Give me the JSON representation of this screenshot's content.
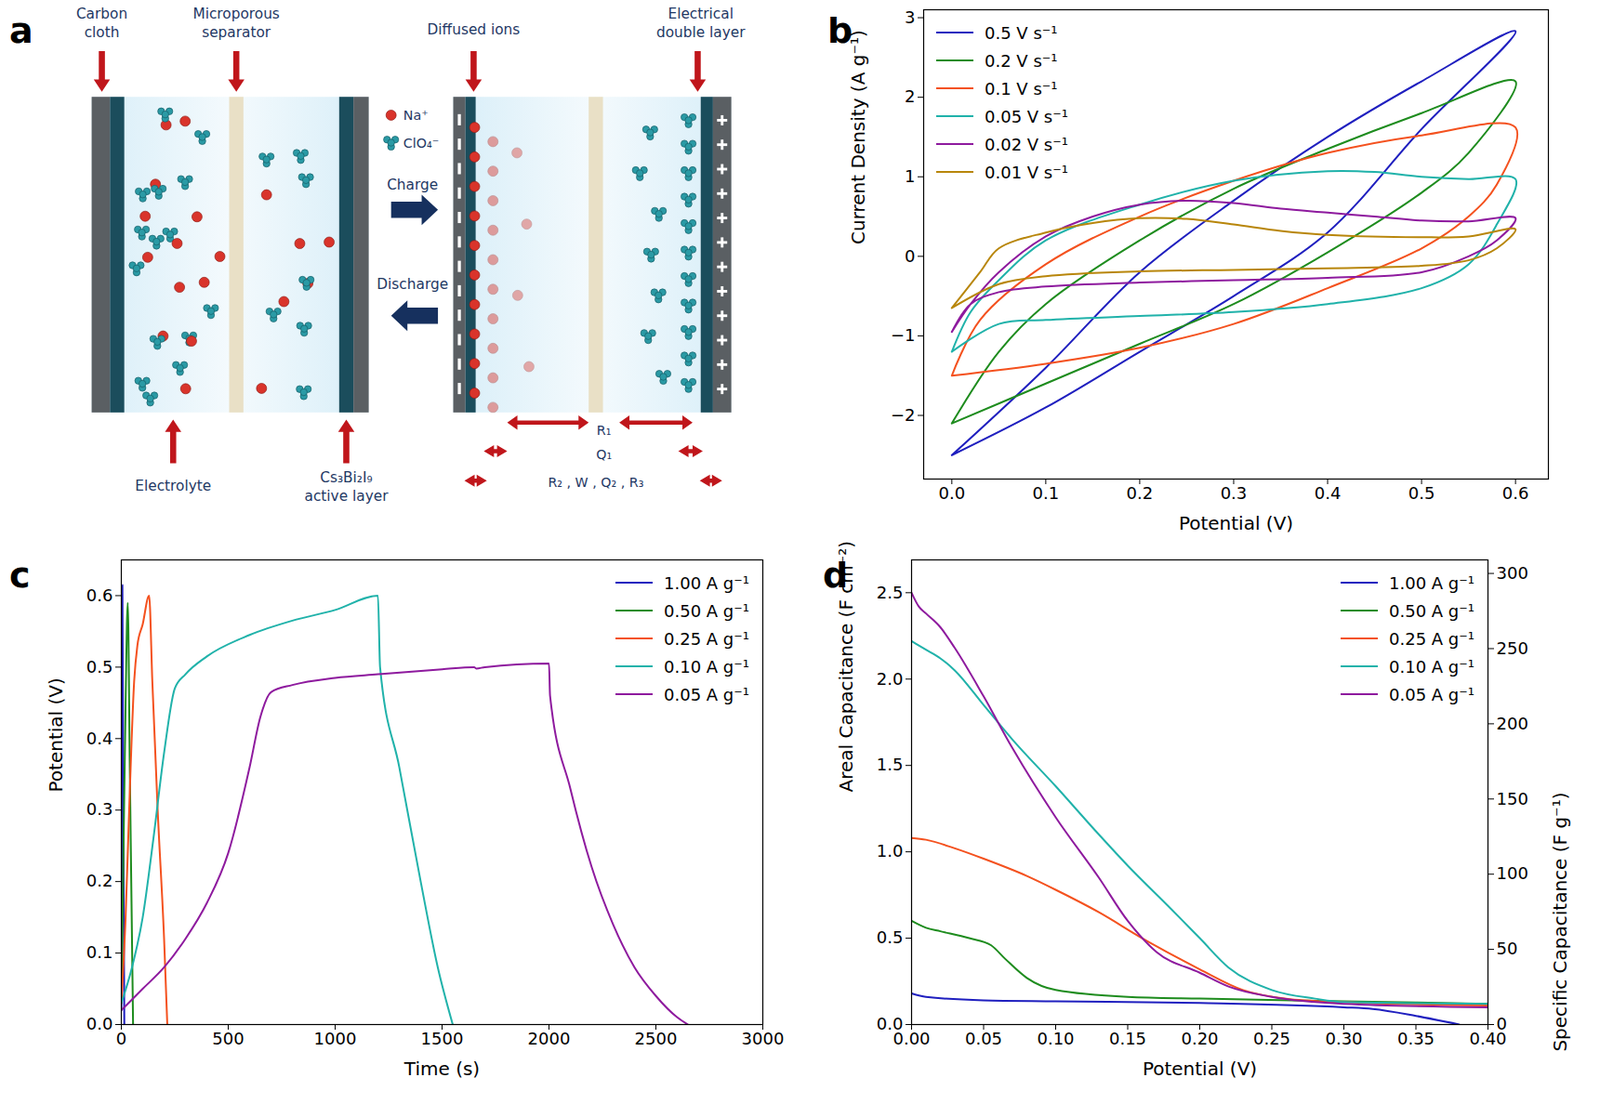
{
  "diagram": {
    "panel": "a",
    "top_labels": [
      "Carbon cloth",
      "Microporous separator",
      "Diffused ions",
      "Electrical double layer"
    ],
    "bottom_labels": [
      "Electrolyte",
      "Cs₃Bi₂I₉ active layer"
    ],
    "ion_legend": [
      "Na⁺",
      "ClO₄⁻"
    ],
    "process_labels": [
      "Charge",
      "Discharge"
    ],
    "circuit_labels": [
      "R₁",
      "Q₁",
      "R₂ , W , Q₂ , R₃"
    ]
  },
  "chart_data": [
    {
      "panel": "b",
      "type": "line",
      "x_label": "Potential (V)",
      "y_label": "Current Density (A g⁻¹)",
      "xlim": [
        -0.03,
        0.635
      ],
      "ylim": [
        -2.8,
        3.1
      ],
      "xticks": [
        {
          "value": 0,
          "label": "0.0"
        },
        {
          "value": 0.1,
          "label": "0.1"
        },
        {
          "value": 0.2,
          "label": "0.2"
        },
        {
          "value": 0.3,
          "label": "0.3"
        },
        {
          "value": 0.4,
          "label": "0.4"
        },
        {
          "value": 0.5,
          "label": "0.5"
        },
        {
          "value": 0.6,
          "label": "0.6"
        }
      ],
      "yticks": [
        -2,
        -1,
        0,
        1,
        2,
        3
      ],
      "legend": "upper left",
      "series": [
        {
          "name": "0.5 V s⁻¹",
          "color": "#1f1fbf",
          "x": [
            0,
            0.1,
            0.2,
            0.3,
            0.4,
            0.5,
            0.6,
            0.5,
            0.4,
            0.3,
            0.2,
            0.1,
            0
          ],
          "values": [
            -2.5,
            -1.4,
            -0.2,
            0.7,
            1.5,
            2.2,
            2.83,
            1.6,
            0.3,
            -0.5,
            -1.2,
            -1.9,
            -2.5
          ]
        },
        {
          "name": "0.2 V s⁻¹",
          "color": "#1e8c1e",
          "x": [
            0,
            0.05,
            0.1,
            0.2,
            0.3,
            0.4,
            0.5,
            0.6,
            0.55,
            0.5,
            0.4,
            0.3,
            0.2,
            0.1,
            0
          ],
          "values": [
            -2.1,
            -1.2,
            -0.6,
            0.2,
            0.85,
            1.35,
            1.8,
            2.2,
            1.3,
            0.8,
            0.05,
            -0.6,
            -1.1,
            -1.6,
            -2.1
          ]
        },
        {
          "name": "0.1 V s⁻¹",
          "color": "#f4511e",
          "x": [
            0,
            0.03,
            0.1,
            0.2,
            0.3,
            0.4,
            0.5,
            0.6,
            0.58,
            0.55,
            0.5,
            0.4,
            0.3,
            0.2,
            0.1,
            0
          ],
          "values": [
            -1.5,
            -0.8,
            -0.1,
            0.5,
            0.95,
            1.3,
            1.52,
            1.62,
            0.9,
            0.5,
            0.1,
            -0.4,
            -0.85,
            -1.15,
            -1.35,
            -1.5
          ]
        },
        {
          "name": "0.05 V s⁻¹",
          "color": "#20b2aa",
          "x": [
            0,
            0.02,
            0.05,
            0.1,
            0.2,
            0.3,
            0.4,
            0.45,
            0.5,
            0.55,
            0.6,
            0.58,
            0.55,
            0.5,
            0.4,
            0.3,
            0.2,
            0.1,
            0.05,
            0
          ],
          "values": [
            -1.2,
            -0.7,
            -0.3,
            0.2,
            0.65,
            0.95,
            1.07,
            1.06,
            1.0,
            0.97,
            0.97,
            0.4,
            -0.1,
            -0.4,
            -0.6,
            -0.7,
            -0.75,
            -0.8,
            -0.85,
            -1.2
          ]
        },
        {
          "name": "0.02 V s⁻¹",
          "color": "#8e1a9e",
          "x": [
            0,
            0.02,
            0.05,
            0.1,
            0.15,
            0.2,
            0.25,
            0.3,
            0.35,
            0.4,
            0.45,
            0.5,
            0.55,
            0.6,
            0.58,
            0.55,
            0.5,
            0.4,
            0.3,
            0.2,
            0.1,
            0.05,
            0.02,
            0
          ],
          "values": [
            -0.95,
            -0.6,
            -0.2,
            0.25,
            0.5,
            0.65,
            0.7,
            0.67,
            0.6,
            0.55,
            0.5,
            0.45,
            0.44,
            0.48,
            0.2,
            0.0,
            -0.2,
            -0.27,
            -0.3,
            -0.33,
            -0.38,
            -0.45,
            -0.6,
            -0.95
          ]
        },
        {
          "name": "0.01 V s⁻¹",
          "color": "#b8860b",
          "x": [
            0,
            0.03,
            0.05,
            0.1,
            0.15,
            0.2,
            0.25,
            0.3,
            0.35,
            0.4,
            0.5,
            0.55,
            0.6,
            0.58,
            0.55,
            0.5,
            0.4,
            0.3,
            0.2,
            0.1,
            0.05,
            0
          ],
          "values": [
            -0.65,
            -0.2,
            0.1,
            0.3,
            0.42,
            0.48,
            0.47,
            0.4,
            0.32,
            0.27,
            0.24,
            0.25,
            0.34,
            0.1,
            -0.05,
            -0.12,
            -0.15,
            -0.17,
            -0.19,
            -0.25,
            -0.35,
            -0.65
          ]
        }
      ]
    },
    {
      "panel": "c",
      "type": "line",
      "x_label": "Time (s)",
      "y_label": "Potential (V)",
      "xlim": [
        0,
        3000
      ],
      "ylim": [
        0,
        0.65
      ],
      "xticks": [
        0,
        500,
        1000,
        1500,
        2000,
        2500,
        3000
      ],
      "yticks": [
        {
          "value": 0,
          "label": "0.0"
        },
        {
          "value": 0.1,
          "label": "0.1"
        },
        {
          "value": 0.2,
          "label": "0.2"
        },
        {
          "value": 0.3,
          "label": "0.3"
        },
        {
          "value": 0.4,
          "label": "0.4"
        },
        {
          "value": 0.5,
          "label": "0.5"
        },
        {
          "value": 0.6,
          "label": "0.6"
        }
      ],
      "legend": "upper right",
      "series": [
        {
          "name": "1.00 A g⁻¹",
          "color": "#1f1fbf",
          "x": [
            0,
            3,
            5,
            9,
            14
          ],
          "values": [
            0.02,
            0.3,
            0.615,
            0.3,
            0
          ]
        },
        {
          "name": "0.50 A g⁻¹",
          "color": "#1e8c1e",
          "x": [
            0,
            8,
            20,
            30,
            40,
            55
          ],
          "values": [
            0.03,
            0.2,
            0.45,
            0.59,
            0.35,
            0
          ]
        },
        {
          "name": "0.25 A g⁻¹",
          "color": "#f4511e",
          "x": [
            0,
            20,
            40,
            60,
            75,
            100,
            130,
            145,
            170,
            200,
            215
          ],
          "values": [
            0.03,
            0.15,
            0.33,
            0.48,
            0.53,
            0.56,
            0.6,
            0.48,
            0.3,
            0.12,
            0
          ]
        },
        {
          "name": "0.10 A g⁻¹",
          "color": "#20b2aa",
          "x": [
            0,
            50,
            100,
            150,
            200,
            250,
            300,
            400,
            600,
            800,
            1000,
            1200,
            1210,
            1300,
            1400,
            1480,
            1550
          ],
          "values": [
            0.03,
            0.08,
            0.15,
            0.26,
            0.38,
            0.47,
            0.49,
            0.515,
            0.545,
            0.565,
            0.58,
            0.6,
            0.5,
            0.36,
            0.2,
            0.08,
            0
          ]
        },
        {
          "name": "0.05 A g⁻¹",
          "color": "#8e1a9e",
          "x": [
            0,
            100,
            200,
            300,
            400,
            500,
            600,
            650,
            700,
            800,
            1000,
            1200,
            1500,
            1650,
            1660,
            1700,
            2000,
            2005,
            2100,
            2200,
            2300,
            2400,
            2500,
            2600,
            2650
          ],
          "values": [
            0.02,
            0.05,
            0.08,
            0.12,
            0.17,
            0.24,
            0.36,
            0.43,
            0.465,
            0.475,
            0.485,
            0.49,
            0.497,
            0.5,
            0.498,
            0.5,
            0.505,
            0.46,
            0.33,
            0.22,
            0.14,
            0.08,
            0.04,
            0.01,
            0
          ]
        }
      ]
    },
    {
      "panel": "d",
      "type": "line",
      "x_label": "Potential (V)",
      "y_label": "Areal Capacitance (F cm⁻²)",
      "y2_label": "Specific Capacitance (F g⁻¹)",
      "xlim": [
        0,
        0.4
      ],
      "ylim": [
        0,
        2.69
      ],
      "y2lim": [
        0,
        309
      ],
      "xticks": [
        {
          "value": 0,
          "label": "0.00"
        },
        {
          "value": 0.05,
          "label": "0.05"
        },
        {
          "value": 0.1,
          "label": "0.10"
        },
        {
          "value": 0.15,
          "label": "0.15"
        },
        {
          "value": 0.2,
          "label": "0.20"
        },
        {
          "value": 0.25,
          "label": "0.25"
        },
        {
          "value": 0.3,
          "label": "0.30"
        },
        {
          "value": 0.35,
          "label": "0.35"
        },
        {
          "value": 0.4,
          "label": "0.40"
        }
      ],
      "yticks": [
        {
          "value": 0,
          "label": "0.0"
        },
        {
          "value": 0.5,
          "label": "0.5"
        },
        {
          "value": 1,
          "label": "1.0"
        },
        {
          "value": 1.5,
          "label": "1.5"
        },
        {
          "value": 2,
          "label": "2.0"
        },
        {
          "value": 2.5,
          "label": "2.5"
        }
      ],
      "y2ticks": [
        0,
        50,
        100,
        150,
        200,
        250,
        300
      ],
      "legend": "upper right",
      "series": [
        {
          "name": "1.00 A g⁻¹",
          "color": "#1f1fbf",
          "x": [
            0,
            0.01,
            0.05,
            0.1,
            0.2,
            0.3,
            0.32,
            0.35,
            0.38
          ],
          "values": [
            0.18,
            0.16,
            0.14,
            0.135,
            0.125,
            0.1,
            0.09,
            0.05,
            0
          ]
        },
        {
          "name": "0.50 A g⁻¹",
          "color": "#1e8c1e",
          "x": [
            0,
            0.01,
            0.02,
            0.04,
            0.055,
            0.065,
            0.08,
            0.1,
            0.15,
            0.2,
            0.3,
            0.4
          ],
          "values": [
            0.6,
            0.56,
            0.54,
            0.5,
            0.46,
            0.38,
            0.27,
            0.2,
            0.16,
            0.15,
            0.135,
            0.12
          ]
        },
        {
          "name": "0.25 A g⁻¹",
          "color": "#f4511e",
          "x": [
            0,
            0.01,
            0.03,
            0.05,
            0.08,
            0.1,
            0.13,
            0.16,
            0.2,
            0.23,
            0.26,
            0.3,
            0.4
          ],
          "values": [
            1.08,
            1.07,
            1.02,
            0.96,
            0.86,
            0.78,
            0.65,
            0.5,
            0.32,
            0.2,
            0.15,
            0.13,
            0.11
          ]
        },
        {
          "name": "0.10 A g⁻¹",
          "color": "#20b2aa",
          "x": [
            0,
            0.01,
            0.02,
            0.03,
            0.05,
            0.07,
            0.1,
            0.13,
            0.15,
            0.18,
            0.2,
            0.22,
            0.25,
            0.28,
            0.3,
            0.4
          ],
          "values": [
            2.22,
            2.17,
            2.12,
            2.05,
            1.85,
            1.65,
            1.38,
            1.1,
            0.92,
            0.67,
            0.5,
            0.33,
            0.2,
            0.15,
            0.13,
            0.12
          ]
        },
        {
          "name": "0.05 A g⁻¹",
          "color": "#8e1a9e",
          "x": [
            0,
            0.005,
            0.01,
            0.02,
            0.03,
            0.05,
            0.07,
            0.1,
            0.13,
            0.15,
            0.17,
            0.2,
            0.22,
            0.25,
            0.3,
            0.4
          ],
          "values": [
            2.5,
            2.42,
            2.38,
            2.3,
            2.18,
            1.9,
            1.6,
            1.2,
            0.85,
            0.6,
            0.42,
            0.3,
            0.22,
            0.16,
            0.12,
            0.1
          ]
        }
      ]
    }
  ]
}
